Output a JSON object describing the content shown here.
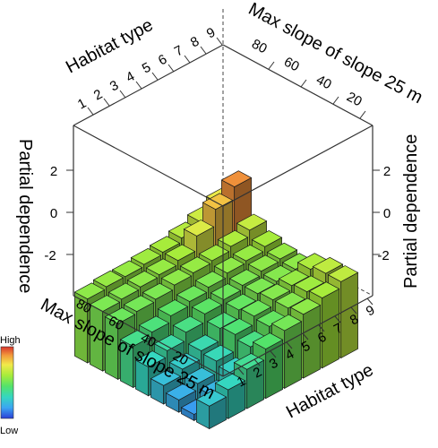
{
  "chart_data": {
    "type": "3d-perspective-surface",
    "axes": {
      "habitat": {
        "label": "Habitat type",
        "ticks": [
          "1",
          "2",
          "3",
          "4",
          "5",
          "6",
          "7",
          "8",
          "9"
        ]
      },
      "slope": {
        "label": "Max slope of slope 25 m",
        "ticks": [
          "20",
          "40",
          "60",
          "80"
        ]
      },
      "z": {
        "label": "Partial dependence",
        "ticks": [
          "-2",
          "0",
          "2"
        ],
        "range": [
          -3.5,
          3.5
        ]
      }
    },
    "color_scale": {
      "high_label": "High",
      "low_label": "Low",
      "colors": [
        "#2b3fd6",
        "#3ba6f2",
        "#35d7c0",
        "#53e36a",
        "#a7ec3b",
        "#f2e94a",
        "#f29a3c",
        "#d8342c"
      ]
    },
    "habitat_values": [
      1,
      2,
      3,
      4,
      5,
      6,
      7,
      8,
      9
    ],
    "slope_values": [
      15,
      25,
      35,
      45,
      55,
      65,
      75,
      85
    ],
    "surface_z": [
      [
        0.2,
        0.3,
        0.3,
        0.4,
        0.5,
        0.7,
        1.0,
        1.4
      ],
      [
        0.0,
        0.1,
        0.2,
        0.3,
        0.5,
        1.2,
        2.0,
        2.6
      ],
      [
        -0.2,
        -0.1,
        0.0,
        0.2,
        0.3,
        0.4,
        0.6,
        0.9
      ],
      [
        -0.9,
        -0.7,
        -0.4,
        -0.2,
        0.0,
        0.2,
        0.3,
        0.5
      ],
      [
        -1.5,
        -1.2,
        -0.8,
        -0.4,
        -0.2,
        0.0,
        0.2,
        0.3
      ],
      [
        -2.0,
        -1.7,
        -1.3,
        -0.7,
        -0.3,
        0.0,
        0.1,
        0.2
      ],
      [
        -2.3,
        -2.0,
        -1.4,
        -0.6,
        -0.2,
        0.1,
        0.3,
        0.6
      ],
      [
        -2.6,
        -2.2,
        -1.6,
        -0.8,
        -0.3,
        0.1,
        0.4,
        0.8
      ],
      [
        -1.8,
        -1.5,
        -1.0,
        -0.5,
        -0.1,
        0.2,
        0.5,
        0.8
      ]
    ]
  }
}
